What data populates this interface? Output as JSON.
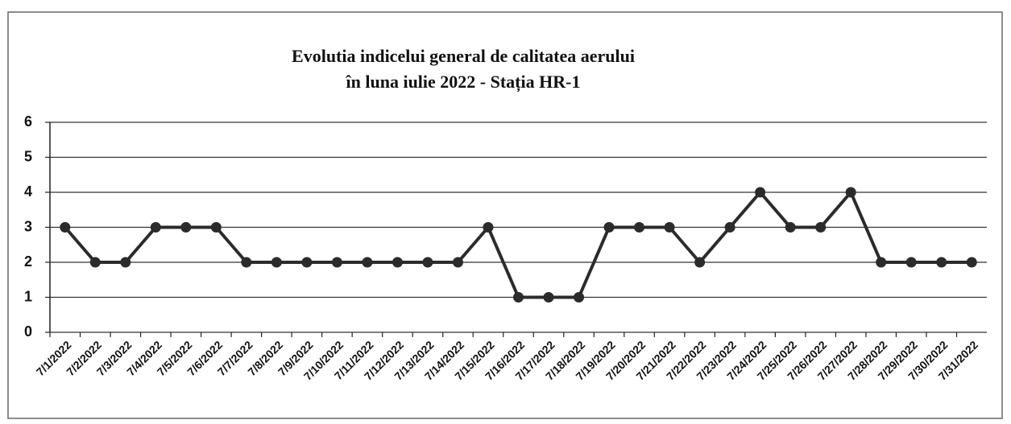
{
  "chart_data": {
    "type": "line",
    "title": [
      "Evolutia indicelui general de calitatea aerului",
      "în luna iulie 2022 - Stația HR-1"
    ],
    "categories": [
      "7/1/2022",
      "7/2/2022",
      "7/3/2022",
      "7/4/2022",
      "7/5/2022",
      "7/6/2022",
      "7/7/2022",
      "7/8/2022",
      "7/9/2022",
      "7/10/2022",
      "7/11/2022",
      "7/12/2022",
      "7/13/2022",
      "7/14/2022",
      "7/15/2022",
      "7/16/2022",
      "7/17/2022",
      "7/18/2022",
      "7/19/2022",
      "7/20/2022",
      "7/21/2022",
      "7/22/2022",
      "7/23/2022",
      "7/24/2022",
      "7/25/2022",
      "7/26/2022",
      "7/27/2022",
      "7/28/2022",
      "7/29/2022",
      "7/30/2022",
      "7/31/2022"
    ],
    "values": [
      3,
      2,
      2,
      3,
      3,
      3,
      2,
      2,
      2,
      2,
      2,
      2,
      2,
      2,
      3,
      1,
      1,
      1,
      3,
      3,
      3,
      2,
      3,
      4,
      3,
      3,
      4,
      2,
      2,
      2,
      2
    ],
    "color": "#2b2b2b",
    "ylim": [
      0,
      6
    ],
    "yticks": [
      0,
      1,
      2,
      3,
      4,
      5,
      6
    ],
    "grid": true
  }
}
